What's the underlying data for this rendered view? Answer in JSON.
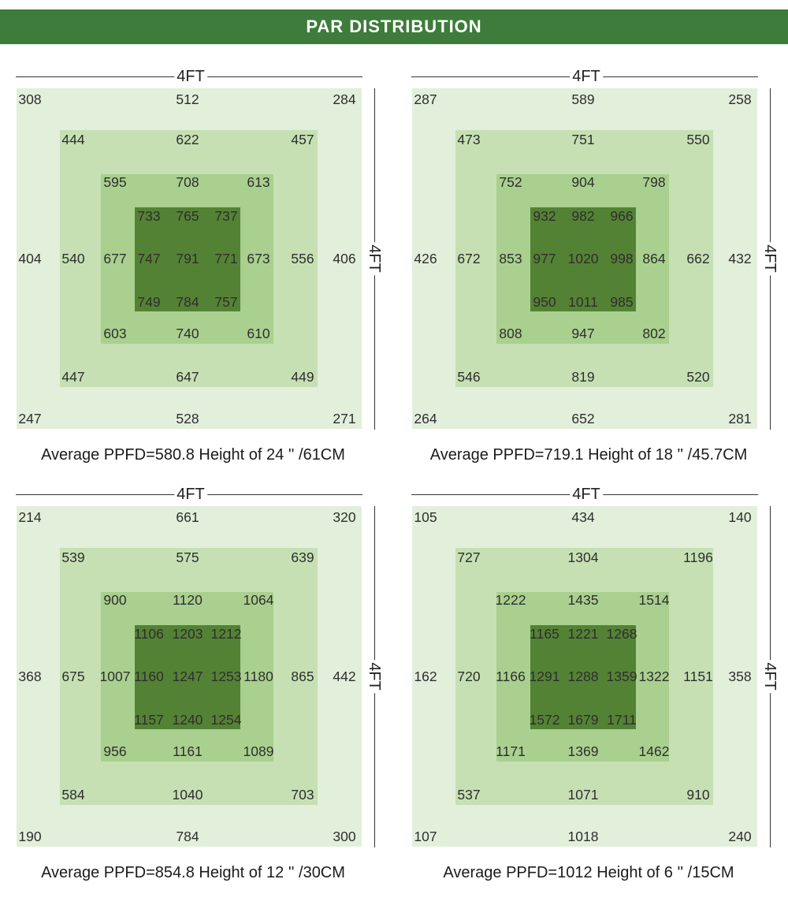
{
  "header": {
    "title": "PAR DISTRIBUTION"
  },
  "colors": {
    "header": "#3d7c3a",
    "outer_ring": "#e2efda",
    "second_ring": "#c6e0b4",
    "third_ring": "#a9d08e",
    "center_block": "#548235"
  },
  "chart_data": [
    {
      "type": "heatmap",
      "x_label": "4FT",
      "y_label": "4FT",
      "rings": {
        "outer_ring": {
          "top": [
            308,
            512,
            284
          ],
          "middle": [
            404,
            406
          ],
          "bottom": [
            247,
            528,
            271
          ]
        },
        "second_ring": {
          "top": [
            444,
            622,
            457
          ],
          "middle": [
            540,
            556
          ],
          "bottom": [
            447,
            647,
            449
          ]
        },
        "third_ring": {
          "top": [
            595,
            708,
            613
          ],
          "middle": [
            677,
            673
          ],
          "bottom": [
            603,
            740,
            610
          ]
        },
        "center_block": {
          "top": [
            733,
            765,
            737
          ],
          "middle": [
            747,
            791,
            771
          ],
          "bottom": [
            749,
            784,
            757
          ]
        }
      },
      "caption": {
        "label": "Average PPFD=",
        "value": 580.8,
        "height": "Height of 24 '' /61CM"
      }
    },
    {
      "type": "heatmap",
      "x_label": "4FT",
      "y_label": "4FT",
      "rings": {
        "outer_ring": {
          "top": [
            287,
            589,
            258
          ],
          "middle": [
            426,
            432
          ],
          "bottom": [
            264,
            652,
            281
          ]
        },
        "second_ring": {
          "top": [
            473,
            751,
            550
          ],
          "middle": [
            672,
            662
          ],
          "bottom": [
            546,
            819,
            520
          ]
        },
        "third_ring": {
          "top": [
            752,
            904,
            798
          ],
          "middle": [
            853,
            864
          ],
          "bottom": [
            808,
            947,
            802
          ]
        },
        "center_block": {
          "top": [
            932,
            982,
            966
          ],
          "middle": [
            977,
            1020,
            998
          ],
          "bottom": [
            950,
            1011,
            985
          ]
        }
      },
      "caption": {
        "label": "Average PPFD=",
        "value": 719.1,
        "height": "Height of 18 '' /45.7CM"
      }
    },
    {
      "type": "heatmap",
      "x_label": "4FT",
      "y_label": "4FT",
      "rings": {
        "outer_ring": {
          "top": [
            214,
            661,
            320
          ],
          "middle": [
            368,
            442
          ],
          "bottom": [
            190,
            784,
            300
          ]
        },
        "second_ring": {
          "top": [
            539,
            575,
            639
          ],
          "middle": [
            675,
            865
          ],
          "bottom": [
            584,
            1040,
            703
          ]
        },
        "third_ring": {
          "top": [
            900,
            1120,
            1064
          ],
          "middle": [
            1007,
            1180
          ],
          "bottom": [
            956,
            1161,
            1089
          ]
        },
        "center_block": {
          "top": [
            1106,
            1203,
            1212
          ],
          "middle": [
            1160,
            1247,
            1253
          ],
          "bottom": [
            1157,
            1240,
            1254
          ]
        }
      },
      "caption": {
        "label": "Average PPFD=",
        "value": 854.8,
        "height": "Height of 12 '' /30CM"
      }
    },
    {
      "type": "heatmap",
      "x_label": "4FT",
      "y_label": "4FT",
      "rings": {
        "outer_ring": {
          "top": [
            105,
            434,
            140
          ],
          "middle": [
            162,
            358
          ],
          "bottom": [
            107,
            1018,
            240
          ]
        },
        "second_ring": {
          "top": [
            727,
            1304,
            1196
          ],
          "middle": [
            720,
            1151
          ],
          "bottom": [
            537,
            1071,
            910
          ]
        },
        "third_ring": {
          "top": [
            1222,
            1435,
            1514
          ],
          "middle": [
            1166,
            1322
          ],
          "bottom": [
            1171,
            1369,
            1462
          ]
        },
        "center_block": {
          "top": [
            1165,
            1221,
            1268
          ],
          "middle": [
            1291,
            1288,
            1359
          ],
          "bottom": [
            1572,
            1679,
            1711
          ]
        }
      },
      "caption": {
        "label": "Average PPFD=",
        "value": 1012,
        "height": "Height of 6 '' /15CM"
      }
    }
  ]
}
